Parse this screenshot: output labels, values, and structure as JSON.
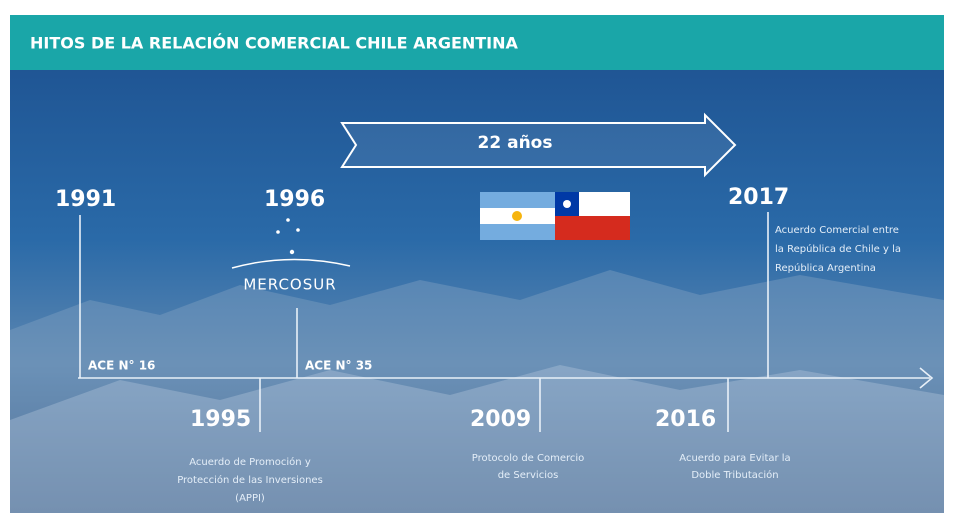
{
  "header": {
    "title": "HITOS DE LA RELACIÓN COMERCIAL CHILE ARGENTINA"
  },
  "duration": "22 años",
  "logo": "MERCOSUR",
  "milestones_above": [
    {
      "year": "1991",
      "agreement": "ACE N° 16"
    },
    {
      "year": "1996",
      "agreement": "ACE N° 35"
    },
    {
      "year": "2017",
      "lines": [
        "Acuerdo Comercial entre",
        "la República de Chile y la",
        "República Argentina"
      ]
    }
  ],
  "milestones_below": [
    {
      "year": "1995",
      "lines": [
        "Acuerdo de Promoción y",
        "Protección de las Inversiones",
        "(APPI)"
      ]
    },
    {
      "year": "2009",
      "lines": [
        "Protocolo de Comercio",
        "de Servicios"
      ]
    },
    {
      "year": "2016",
      "lines": [
        "Acuerdo para Evitar la",
        "Doble Tributación"
      ]
    }
  ]
}
